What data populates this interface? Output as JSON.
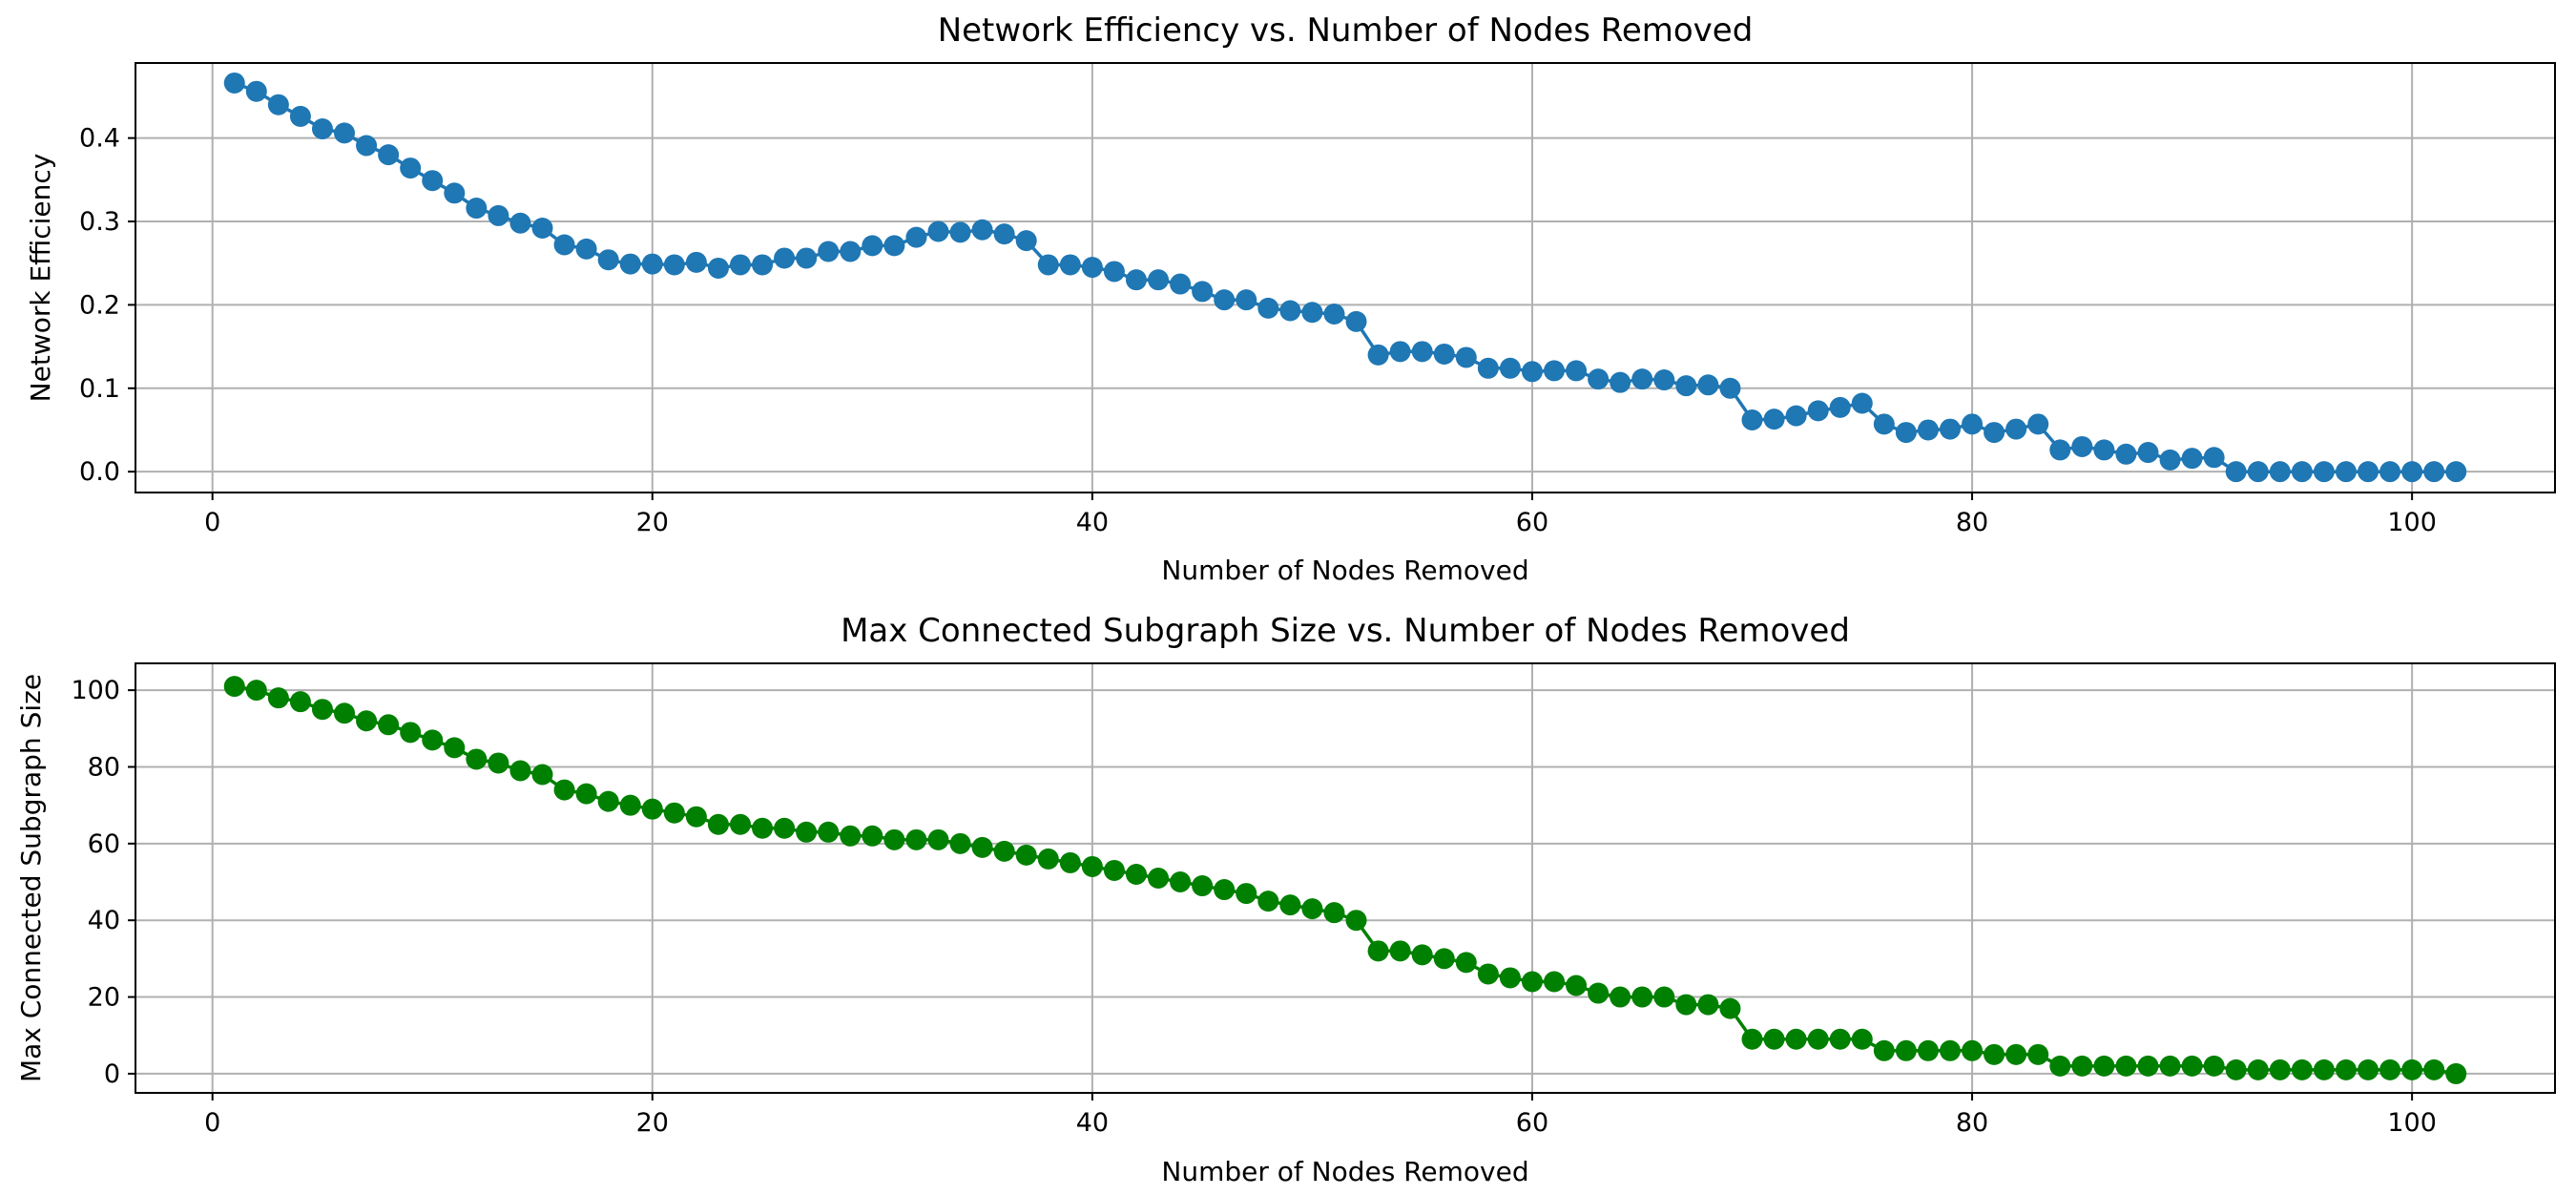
{
  "chart_data": [
    {
      "type": "line",
      "title": "Network Efficiency vs. Number of Nodes Removed",
      "xlabel": "Number of Nodes Removed",
      "ylabel": "Network Efficiency",
      "xlim": [
        -3.5,
        106.5
      ],
      "ylim": [
        -0.025,
        0.49
      ],
      "xticks": [
        0,
        20,
        40,
        60,
        80,
        100
      ],
      "xtick_labels": [
        "0",
        "20",
        "40",
        "60",
        "80",
        "100"
      ],
      "yticks": [
        0.0,
        0.1,
        0.2,
        0.3,
        0.4
      ],
      "ytick_labels": [
        "0.0",
        "0.1",
        "0.2",
        "0.3",
        "0.4"
      ],
      "grid": true,
      "color": "#1f77b4",
      "marker": "circle",
      "series": [
        {
          "name": "Network Efficiency",
          "x": [
            1,
            2,
            3,
            4,
            5,
            6,
            7,
            8,
            9,
            10,
            11,
            12,
            13,
            14,
            15,
            16,
            17,
            18,
            19,
            20,
            21,
            22,
            23,
            24,
            25,
            26,
            27,
            28,
            29,
            30,
            31,
            32,
            33,
            34,
            35,
            36,
            37,
            38,
            39,
            40,
            41,
            42,
            43,
            44,
            45,
            46,
            47,
            48,
            49,
            50,
            51,
            52,
            53,
            54,
            55,
            56,
            57,
            58,
            59,
            60,
            61,
            62,
            63,
            64,
            65,
            66,
            67,
            68,
            69,
            70,
            71,
            72,
            73,
            74,
            75,
            76,
            77,
            78,
            79,
            80,
            81,
            82,
            83,
            84,
            85,
            86,
            87,
            88,
            89,
            90,
            91,
            92,
            93,
            94,
            95,
            96,
            97,
            98,
            99,
            100,
            101,
            102
          ],
          "values": [
            0.466,
            0.456,
            0.44,
            0.426,
            0.411,
            0.406,
            0.391,
            0.38,
            0.364,
            0.349,
            0.334,
            0.316,
            0.307,
            0.298,
            0.292,
            0.272,
            0.267,
            0.254,
            0.249,
            0.249,
            0.248,
            0.251,
            0.244,
            0.248,
            0.248,
            0.256,
            0.256,
            0.264,
            0.264,
            0.271,
            0.271,
            0.281,
            0.288,
            0.287,
            0.29,
            0.285,
            0.277,
            0.248,
            0.248,
            0.245,
            0.24,
            0.23,
            0.23,
            0.225,
            0.216,
            0.206,
            0.206,
            0.196,
            0.193,
            0.191,
            0.189,
            0.18,
            0.14,
            0.144,
            0.144,
            0.141,
            0.137,
            0.124,
            0.124,
            0.12,
            0.121,
            0.121,
            0.111,
            0.107,
            0.111,
            0.11,
            0.103,
            0.104,
            0.1,
            0.062,
            0.063,
            0.067,
            0.073,
            0.077,
            0.082,
            0.057,
            0.047,
            0.05,
            0.051,
            0.057,
            0.047,
            0.051,
            0.057,
            0.026,
            0.03,
            0.026,
            0.021,
            0.023,
            0.014,
            0.016,
            0.017,
            0.0,
            0.0,
            0.0,
            0.0,
            0.0,
            0.0,
            0.0,
            0.0,
            0.0,
            0.0,
            0.0
          ]
        }
      ]
    },
    {
      "type": "line",
      "title": "Max Connected Subgraph Size vs. Number of Nodes Removed",
      "xlabel": "Number of Nodes Removed",
      "ylabel": "Max Connected Subgraph Size",
      "xlim": [
        -3.5,
        106.5
      ],
      "ylim": [
        -5,
        107
      ],
      "xticks": [
        0,
        20,
        40,
        60,
        80,
        100
      ],
      "xtick_labels": [
        "0",
        "20",
        "40",
        "60",
        "80",
        "100"
      ],
      "yticks": [
        0,
        20,
        40,
        60,
        80,
        100
      ],
      "ytick_labels": [
        "0",
        "20",
        "40",
        "60",
        "80",
        "100"
      ],
      "grid": true,
      "color": "#008000",
      "marker": "circle",
      "series": [
        {
          "name": "Max Connected Subgraph Size",
          "x": [
            1,
            2,
            3,
            4,
            5,
            6,
            7,
            8,
            9,
            10,
            11,
            12,
            13,
            14,
            15,
            16,
            17,
            18,
            19,
            20,
            21,
            22,
            23,
            24,
            25,
            26,
            27,
            28,
            29,
            30,
            31,
            32,
            33,
            34,
            35,
            36,
            37,
            38,
            39,
            40,
            41,
            42,
            43,
            44,
            45,
            46,
            47,
            48,
            49,
            50,
            51,
            52,
            53,
            54,
            55,
            56,
            57,
            58,
            59,
            60,
            61,
            62,
            63,
            64,
            65,
            66,
            67,
            68,
            69,
            70,
            71,
            72,
            73,
            74,
            75,
            76,
            77,
            78,
            79,
            80,
            81,
            82,
            83,
            84,
            85,
            86,
            87,
            88,
            89,
            90,
            91,
            92,
            93,
            94,
            95,
            96,
            97,
            98,
            99,
            100,
            101,
            102
          ],
          "values": [
            101,
            100,
            98,
            97,
            95,
            94,
            92,
            91,
            89,
            87,
            85,
            82,
            81,
            79,
            78,
            74,
            73,
            71,
            70,
            69,
            68,
            67,
            65,
            65,
            64,
            64,
            63,
            63,
            62,
            62,
            61,
            61,
            61,
            60,
            59,
            58,
            57,
            56,
            55,
            54,
            53,
            52,
            51,
            50,
            49,
            48,
            47,
            45,
            44,
            43,
            42,
            40,
            32,
            32,
            31,
            30,
            29,
            26,
            25,
            24,
            24,
            23,
            21,
            20,
            20,
            20,
            18,
            18,
            17,
            9,
            9,
            9,
            9,
            9,
            9,
            6,
            6,
            6,
            6,
            6,
            5,
            5,
            5,
            2,
            2,
            2,
            2,
            2,
            2,
            2,
            2,
            1,
            1,
            1,
            1,
            1,
            1,
            1,
            1,
            1,
            1,
            0
          ]
        }
      ]
    }
  ]
}
